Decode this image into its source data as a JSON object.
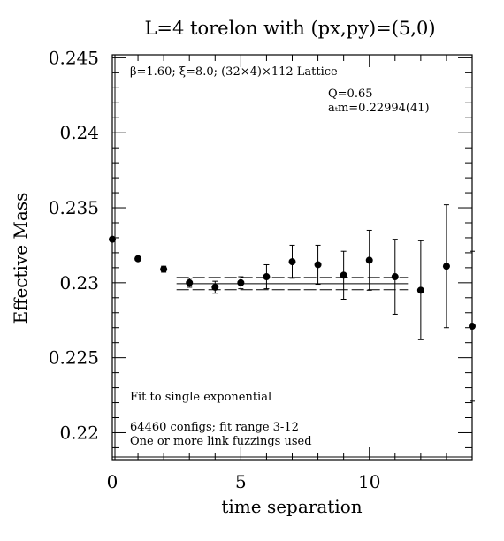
{
  "chart_data": {
    "type": "scatter",
    "title": "L=4 torelon with (px,py)=(5,0)",
    "xlabel": "time separation",
    "ylabel": "Effective Mass",
    "xlim": [
      0,
      14
    ],
    "ylim": [
      0.2182,
      0.2452
    ],
    "xticks": [
      "0",
      "5",
      "10"
    ],
    "yticks": [
      "0.22",
      "0.225",
      "0.23",
      "0.235",
      "0.24",
      "0.245"
    ],
    "xtick_values": [
      0,
      5,
      10
    ],
    "ytick_values": [
      0.22,
      0.225,
      0.23,
      0.235,
      0.24,
      0.245
    ],
    "grid": false,
    "points": [
      {
        "x": 0,
        "y": 0.2329,
        "err": 0.0001
      },
      {
        "x": 1,
        "y": 0.2316,
        "err": 0.0001
      },
      {
        "x": 2,
        "y": 0.2309,
        "err": 0.0002
      },
      {
        "x": 3,
        "y": 0.23,
        "err": 0.0003
      },
      {
        "x": 4,
        "y": 0.2297,
        "err": 0.0004
      },
      {
        "x": 5,
        "y": 0.23,
        "err": 0.0004
      },
      {
        "x": 6,
        "y": 0.2304,
        "err": 0.0008
      },
      {
        "x": 7,
        "y": 0.2314,
        "err": 0.0011
      },
      {
        "x": 8,
        "y": 0.2312,
        "err": 0.0013
      },
      {
        "x": 9,
        "y": 0.2305,
        "err": 0.0016
      },
      {
        "x": 10,
        "y": 0.2315,
        "err": 0.002
      },
      {
        "x": 11,
        "y": 0.2304,
        "err": 0.0025
      },
      {
        "x": 12,
        "y": 0.2295,
        "err": 0.0033
      },
      {
        "x": 13,
        "y": 0.2311,
        "err": 0.0041
      },
      {
        "x": 14,
        "y": 0.2271,
        "err": 0.005
      }
    ],
    "fit": {
      "x_range": [
        2.5,
        11.5
      ],
      "central": 0.22994,
      "error": 0.00041
    },
    "annotations": {
      "lattice": "β=1.60; ξ=8.0; (32×4)×112 Lattice",
      "q": "Q=0.65",
      "mass": "aₜm=0.22994(41)",
      "fit_type": "Fit to single exponential",
      "configs": "64460 configs; fit range 3-12",
      "fuzzing": "One or more link fuzzings used"
    }
  }
}
